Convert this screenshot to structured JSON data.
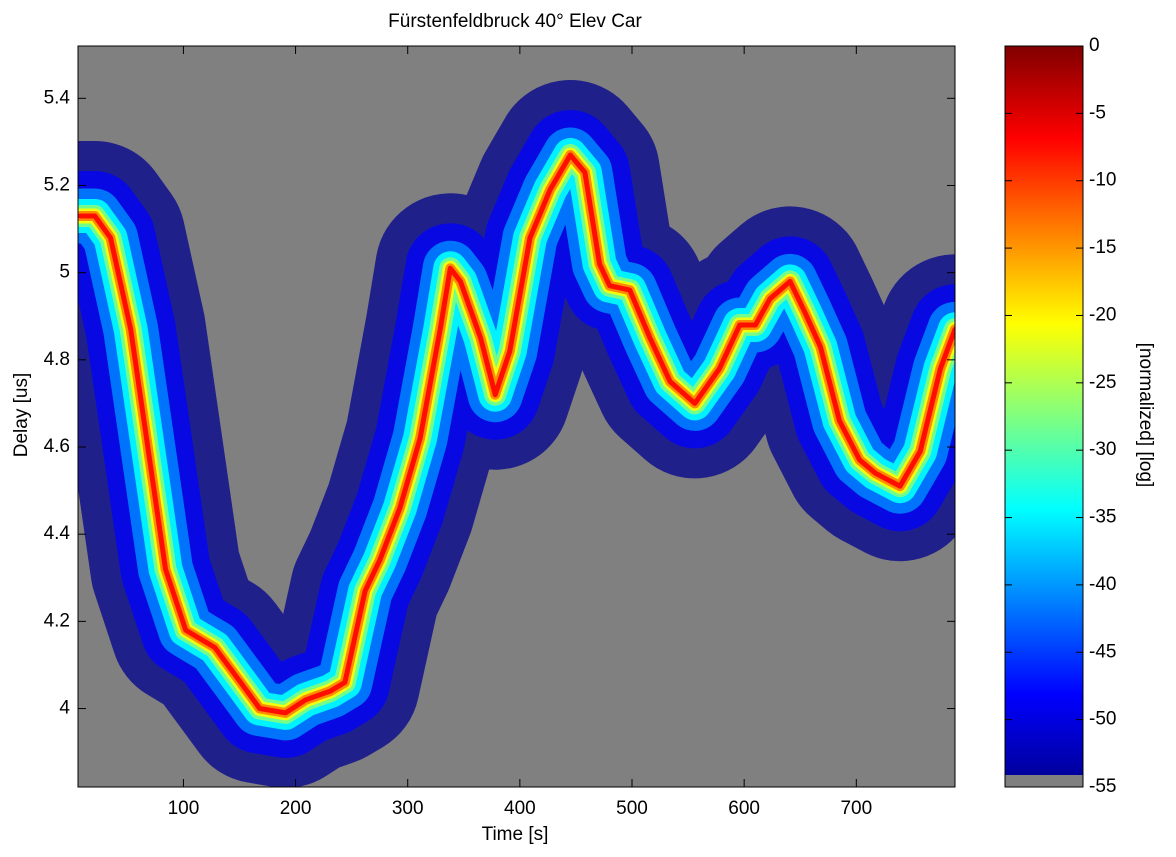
{
  "chart_data": {
    "type": "heatmap",
    "title": "Fürstenfeldbruck 40° Elev Car",
    "xlabel": "Time [s]",
    "ylabel": "Delay [us]",
    "x": [
      8,
      21,
      35,
      53,
      75,
      84,
      102,
      115,
      128,
      151,
      168,
      191,
      209,
      231,
      244,
      262,
      275,
      293,
      311,
      329,
      338,
      347,
      365,
      378,
      391,
      409,
      427,
      445,
      458,
      471,
      480,
      498,
      516,
      534,
      556,
      578,
      596,
      610,
      623,
      641,
      654,
      668,
      685,
      703,
      717,
      739,
      757,
      775,
      788
    ],
    "values": [
      5.13,
      5.13,
      5.08,
      4.87,
      4.48,
      4.32,
      4.18,
      4.16,
      4.14,
      4.06,
      4.0,
      3.99,
      4.02,
      4.04,
      4.06,
      4.27,
      4.34,
      4.46,
      4.62,
      4.87,
      5.01,
      4.98,
      4.85,
      4.72,
      4.82,
      5.08,
      5.19,
      5.27,
      5.23,
      5.02,
      4.97,
      4.96,
      4.85,
      4.75,
      4.7,
      4.78,
      4.88,
      4.88,
      4.94,
      4.98,
      4.91,
      4.83,
      4.66,
      4.57,
      4.54,
      4.51,
      4.59,
      4.78,
      4.87
    ],
    "xlim": [
      6,
      788
    ],
    "xticks": [
      100,
      200,
      300,
      400,
      500,
      600,
      700
    ],
    "ylim": [
      3.82,
      5.52
    ],
    "yticks": [
      4,
      4.2,
      4.4,
      4.6,
      4.8,
      5,
      5.2,
      5.4
    ],
    "colorbar_label": "[normalized] [log]",
    "clim": [
      -55,
      0
    ],
    "cticks": [
      0,
      -5,
      -10,
      -15,
      -20,
      -25,
      -30,
      -35,
      -40,
      -45,
      -50,
      -55
    ],
    "colormap": [
      "#00008f",
      "#0000ff",
      "#0080ff",
      "#00ffff",
      "#80ff80",
      "#ffff00",
      "#ff8000",
      "#ff0000",
      "#800000"
    ],
    "nan_color": "#808080"
  }
}
